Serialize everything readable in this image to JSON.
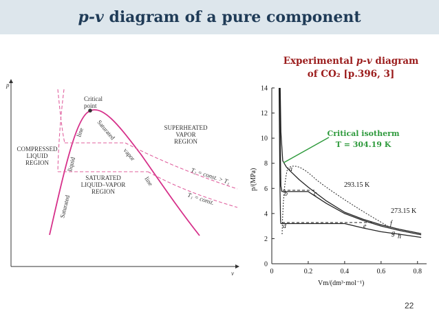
{
  "slide": {
    "title_italic": "p-v",
    "title_rest": " diagram of a pure component",
    "page_number": "22"
  },
  "left_diagram": {
    "axis_y": "p",
    "axis_x": "v",
    "critical_point": [
      "Critical",
      "point"
    ],
    "compressed": [
      "COMPRESSED",
      "LIQUID",
      "REGION"
    ],
    "superheated": [
      "SUPERHEATED",
      "VAPOR",
      "REGION"
    ],
    "saturated_region": [
      "SATURATED",
      "LIQUID–VAPOR",
      "REGION"
    ],
    "sat_liquid_line": [
      "Saturated",
      "liquid",
      "line"
    ],
    "sat_vapor_line": [
      "Saturated",
      "vapor",
      "line"
    ],
    "iso_t2": "T₂ = const. > T₁",
    "iso_t1": "T₁ = const.",
    "colors": {
      "dome": "#d6308a",
      "iso": "#e0609e",
      "axis": "#333333"
    }
  },
  "experimental": {
    "caption_line1_pre": "Experimental ",
    "caption_line1_it": "p-v",
    "caption_line1_post": " diagram",
    "caption_line2": "of CO₂ [p.396, 3]",
    "critical_isotherm_label": "Critical isotherm",
    "critical_isotherm_value": "T = 304.19 K",
    "isotherm_labels": [
      "293.15 K",
      "273.15 K"
    ],
    "point_labels": [
      "a",
      "b",
      "c",
      "d",
      "e",
      "f",
      "g",
      "h"
    ],
    "colors": {
      "caption": "#9b1c1c",
      "critical": "#2e9a3c",
      "curves": "#222222"
    }
  },
  "chart_data": {
    "type": "line",
    "xlabel": "Vm/(dm³·mol⁻¹)",
    "ylabel": "p/(MPa)",
    "xlim": [
      0,
      0.85
    ],
    "ylim": [
      0,
      14
    ],
    "x_ticks": [
      "0",
      "0.2",
      "0.4",
      "0.6",
      "0.8"
    ],
    "y_ticks": [
      "0",
      "2",
      "4",
      "6",
      "8",
      "10",
      "12",
      "14"
    ],
    "series": [
      {
        "name": "304.19 K",
        "x": [
          0.046,
          0.05,
          0.06,
          0.08,
          0.1,
          0.15,
          0.2,
          0.3,
          0.4,
          0.5,
          0.6,
          0.7,
          0.82
        ],
        "y": [
          14,
          10.5,
          8.2,
          7.7,
          7.4,
          6.7,
          6.1,
          5.0,
          4.1,
          3.55,
          3.1,
          2.75,
          2.4
        ]
      },
      {
        "name": "293.15 K",
        "x": [
          0.043,
          0.048,
          0.05,
          0.055,
          0.2,
          0.3,
          0.4,
          0.5,
          0.6,
          0.7,
          0.82
        ],
        "y": [
          14,
          8,
          6.2,
          5.75,
          5.75,
          4.8,
          4.0,
          3.45,
          3.0,
          2.65,
          2.3
        ]
      },
      {
        "name": "273.15 K",
        "x": [
          0.04,
          0.045,
          0.048,
          0.05,
          0.4,
          0.5,
          0.6,
          0.7,
          0.82
        ],
        "y": [
          14,
          6,
          3.5,
          3.2,
          3.2,
          2.85,
          2.55,
          2.35,
          2.1
        ]
      }
    ],
    "grid": false,
    "legend": "none"
  }
}
